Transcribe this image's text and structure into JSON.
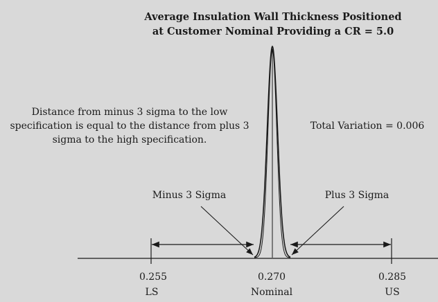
{
  "title_lines": [
    "Average Insulation Wall Thickness Positioned",
    "at Customer Nominal Providing a CR = 5.0"
  ],
  "note_lines": [
    "Distance from minus 3 sigma to the low",
    "specification is equal to the distance from plus 3",
    "sigma to the high specification."
  ],
  "total_variation": "Total Variation = 0.006",
  "minus_label": "Minus 3 Sigma",
  "plus_label": "Plus 3 Sigma",
  "ticks": [
    {
      "value": "0.255",
      "label": "LS"
    },
    {
      "value": "0.270",
      "label": "Nominal"
    },
    {
      "value": "0.285",
      "label": "US"
    }
  ],
  "colors": {
    "background": "#d9d9d9",
    "ink": "#1a1a1a"
  }
}
